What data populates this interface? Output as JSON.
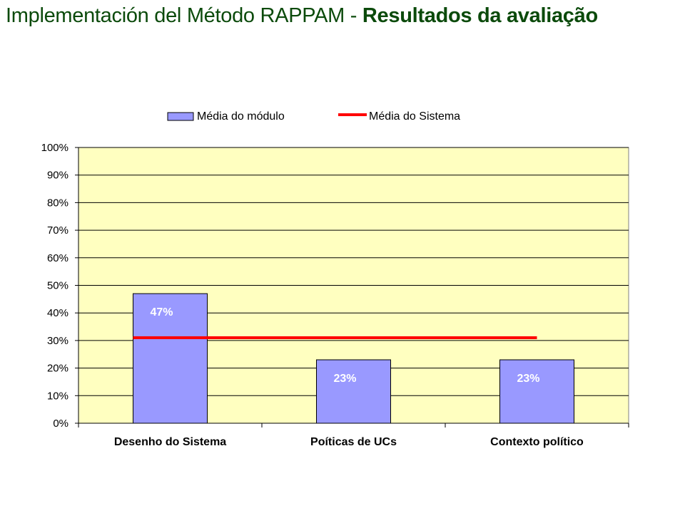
{
  "title": {
    "prefix": "Implementación del Método RAPPAM - ",
    "emphasis": "Resultados da avaliação"
  },
  "colors": {
    "title": "#0b4a0b",
    "plot_background": "#ffffc0",
    "bar_fill": "#9999ff",
    "line": "#ff0000",
    "data_label": "#ffffff"
  },
  "chart_data": {
    "type": "bar",
    "categories": [
      "Desenho do Sistema",
      "Poíticas de UCs",
      "Contexto político"
    ],
    "series": [
      {
        "name": "Média do módulo",
        "kind": "bar",
        "values": [
          47,
          23,
          23
        ],
        "labels": [
          "47%",
          "23%",
          "23%"
        ]
      },
      {
        "name": "Média do Sistema",
        "kind": "line",
        "values": [
          31,
          31,
          31
        ]
      }
    ],
    "yticks": [
      "0%",
      "10%",
      "20%",
      "30%",
      "40%",
      "50%",
      "60%",
      "70%",
      "80%",
      "90%",
      "100%"
    ],
    "ylim": [
      0,
      100
    ],
    "grid": true,
    "legend": "top-center",
    "xlabel": "",
    "ylabel": ""
  }
}
